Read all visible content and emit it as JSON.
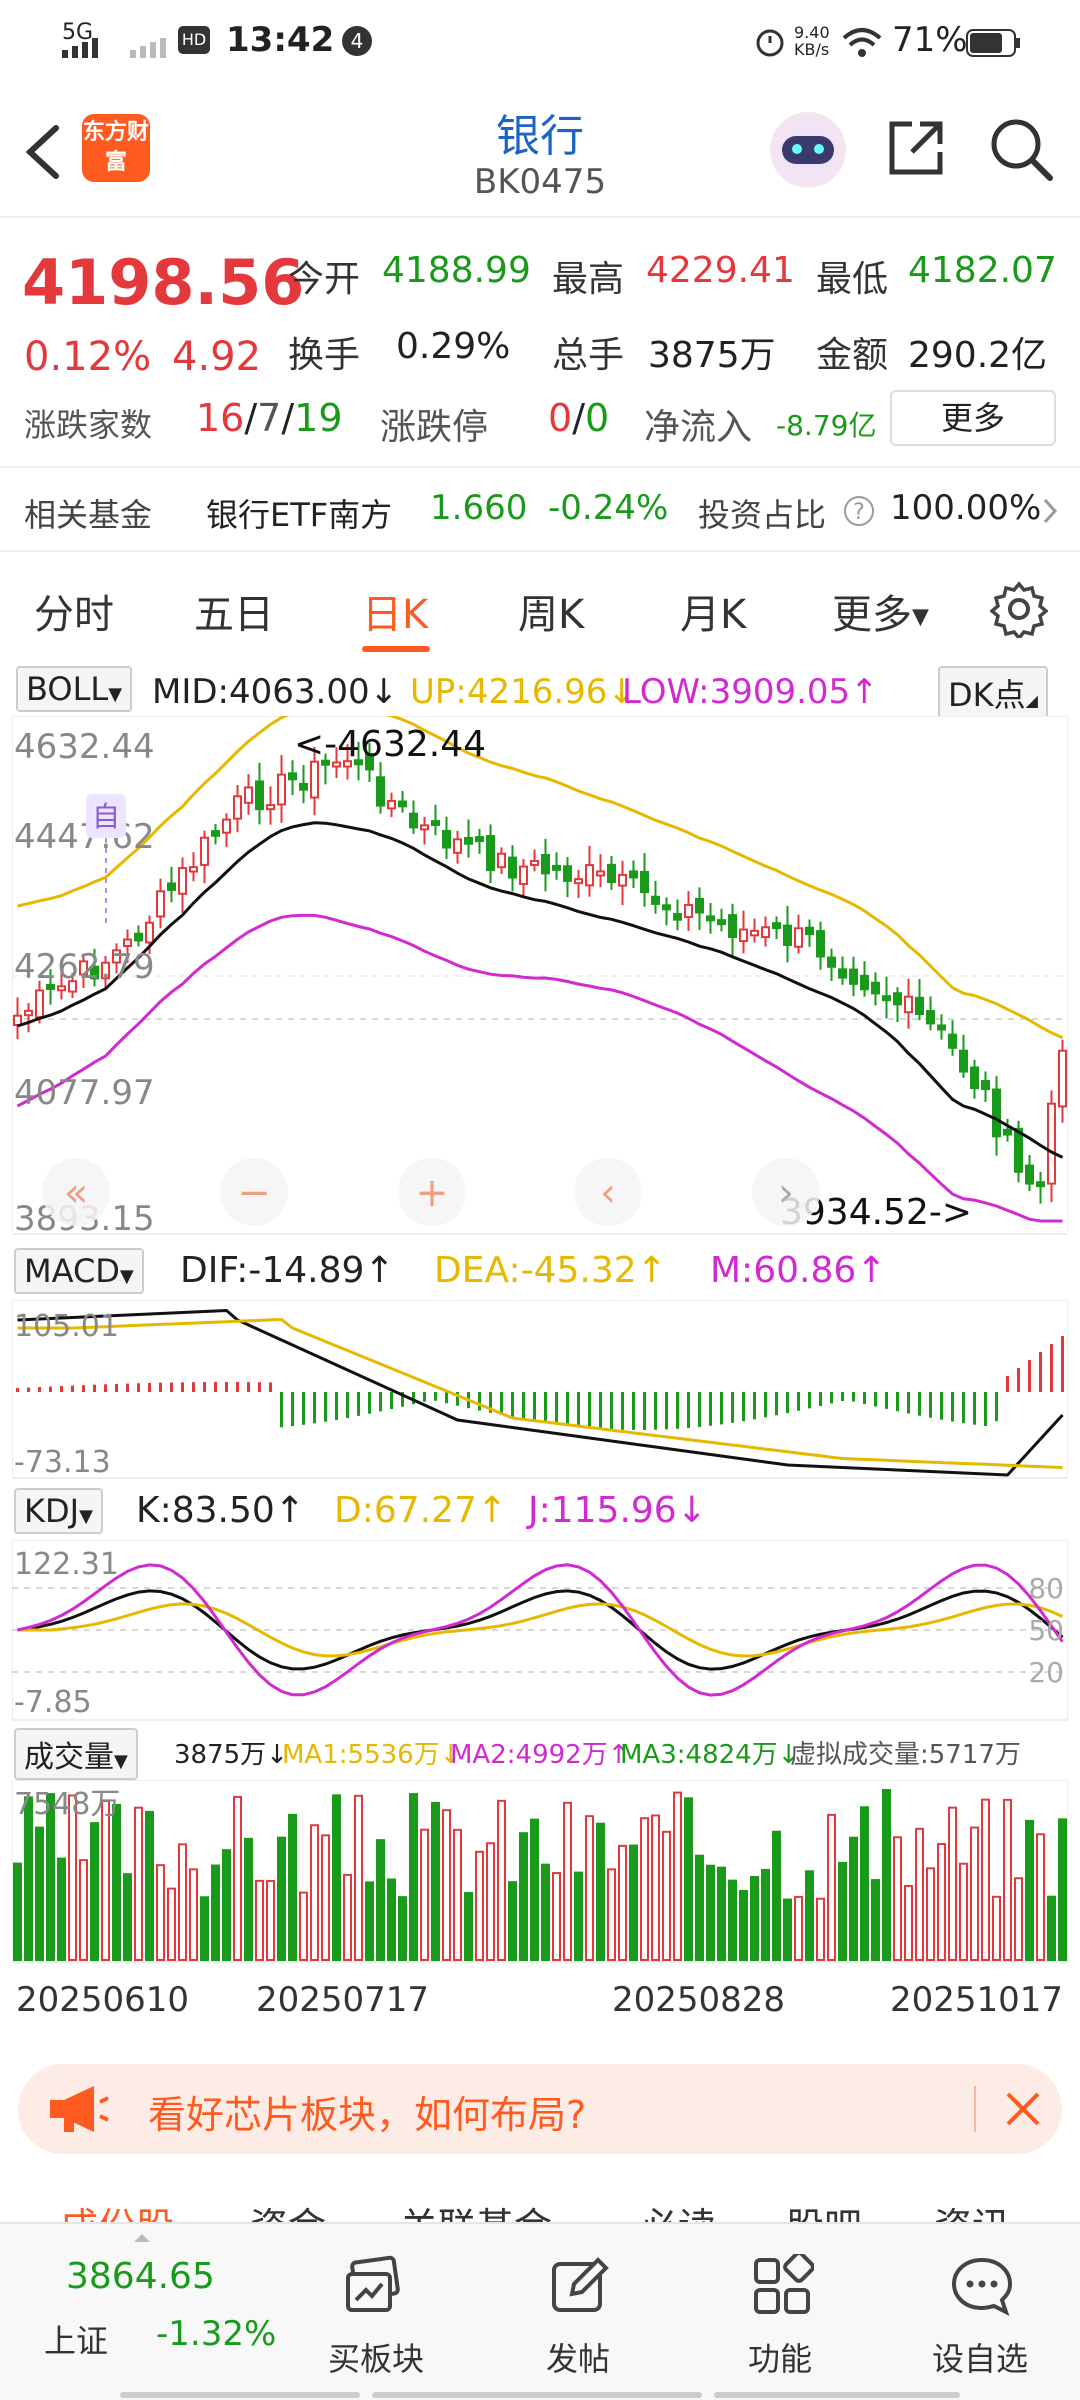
{
  "status_bar": {
    "network": "5G",
    "time": "13:42",
    "notif_count": "4",
    "speed": "9.40 KB/s",
    "battery": "71%"
  },
  "header": {
    "logo_text": "东方财富",
    "title": "银行",
    "code": "BK0475"
  },
  "quote": {
    "price": "4198.56",
    "change_pct": "0.12%",
    "change": "4.92",
    "open_label": "今开",
    "open": "4188.99",
    "high_label": "最高",
    "high": "4229.41",
    "low_label": "最低",
    "low": "4182.07",
    "turnover_label": "换手",
    "turnover": "0.29%",
    "volume_label": "总手",
    "volume": "3875万",
    "amount_label": "金额",
    "amount": "290.2亿",
    "breadth_label": "涨跌家数",
    "breadth_up": "16",
    "breadth_flat": "7",
    "breadth_down": "19",
    "limit_label": "涨跌停",
    "limit_up": "0",
    "limit_down": "0",
    "netflow_label": "净流入",
    "netflow": "-8.79亿",
    "more_button": "更多"
  },
  "fund": {
    "label": "相关基金",
    "name": "银行ETF南方",
    "price": "1.660",
    "change": "-0.24%",
    "ratio_label": "投资占比",
    "ratio": "100.00%"
  },
  "tabs": [
    "分时",
    "五日",
    "日K",
    "周K",
    "月K",
    "更多"
  ],
  "active_tab": "日K",
  "boll": {
    "name": "BOLL",
    "mid": "MID:4063.00↓",
    "up": "UP:4216.96↓",
    "low": "LOW:3909.05↑",
    "dk_button": "DK点"
  },
  "kline_axis": {
    "max": "4632.44",
    "y2": "4447.62",
    "y3": "4262.79",
    "y4": "4077.97",
    "min": "3893.15",
    "high_mark": "<-4632.44",
    "low_mark": "3934.52->",
    "self_tag": "自"
  },
  "macd": {
    "name": "MACD",
    "dif": "DIF:-14.89↑",
    "dea": "DEA:-45.32↑",
    "m": "M:60.86↑",
    "axis_max": "105.01",
    "axis_min": "-73.13"
  },
  "kdj": {
    "name": "KDJ",
    "k": "K:83.50↑",
    "d": "D:67.27↑",
    "j": "J:115.96↓",
    "axis_max": "122.31",
    "axis_min": "-7.85",
    "lv80": "80",
    "lv50": "50",
    "lv20": "20"
  },
  "volume": {
    "name": "成交量",
    "vol": "3875万↓",
    "ma1": "MA1:5536万↓",
    "ma2": "MA2:4992万↑",
    "ma3": "MA3:4824万↓",
    "virtual": "虚拟成交量:5717万",
    "axis_max": "7548万"
  },
  "dates": [
    "20250610",
    "20250717",
    "20250828",
    "20251017"
  ],
  "banner": {
    "text": "看好芯片板块，如何布局?"
  },
  "bottom_bar": {
    "index_value": "3864.65",
    "index_name": "上证",
    "index_change": "-1.32%",
    "items": [
      "买板块",
      "发帖",
      "功能",
      "设自选"
    ]
  },
  "behind_tabs": [
    "成份股",
    "资金",
    "关联基金",
    "必读",
    "股吧",
    "资讯"
  ],
  "colors": {
    "up": "#e4393c",
    "down": "#1a9a1a",
    "accent": "#ff5a1f",
    "title_blue": "#1e63c8"
  }
}
